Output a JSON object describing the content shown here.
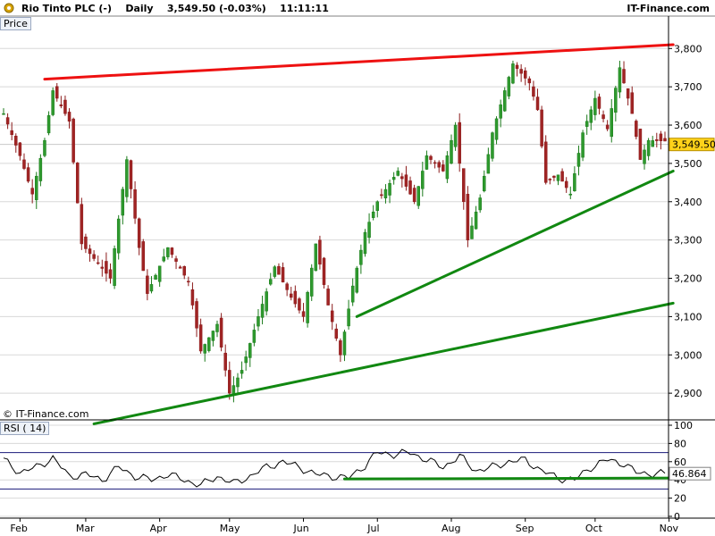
{
  "header": {
    "title": "Rio Tinto PLC (-)",
    "period": "Daily",
    "last": "3,549.50 (-0.03%)",
    "time": "11:11:11",
    "brand": "IT-Finance.com"
  },
  "panels": {
    "price_label": "Price",
    "rsi_label": "RSI ( 14)"
  },
  "copyright": "© IT-Finance.com",
  "colors": {
    "up": "#1a7a1a",
    "down": "#8b1a1a",
    "trend_red": "#ee1111",
    "trend_green": "#118811",
    "price_tag": "#ffd21a",
    "rsi_line": "#000000"
  },
  "chart_data": [
    {
      "type": "candlestick",
      "title": "Rio Tinto PLC (-) Daily",
      "ylabel": "Price",
      "ylim": [
        2835,
        3845
      ],
      "yticks": [
        2900,
        3000,
        3100,
        3200,
        3300,
        3400,
        3500,
        3600,
        3700,
        3800
      ],
      "ytick_labels": [
        "2,900",
        "3,000",
        "3,100",
        "3,200",
        "3,300",
        "3,400",
        "3,500",
        "3,600",
        "3,700",
        "3,800"
      ],
      "months": [
        "Feb",
        "Mar",
        "Apr",
        "May",
        "Jun",
        "Jul",
        "Aug",
        "Sep",
        "Oct",
        "Nov"
      ],
      "month_index": [
        4,
        20,
        38,
        55,
        73,
        91,
        109,
        127,
        144,
        162
      ],
      "n_bars": 162,
      "anchors": [
        [
          0,
          3630
        ],
        [
          4,
          3520
        ],
        [
          7,
          3420
        ],
        [
          10,
          3560
        ],
        [
          12,
          3690
        ],
        [
          16,
          3610
        ],
        [
          19,
          3290
        ],
        [
          26,
          3200
        ],
        [
          30,
          3510
        ],
        [
          33,
          3280
        ],
        [
          35,
          3160
        ],
        [
          40,
          3280
        ],
        [
          45,
          3190
        ],
        [
          48,
          3010
        ],
        [
          52,
          3080
        ],
        [
          55,
          2900
        ],
        [
          58,
          2960
        ],
        [
          62,
          3100
        ],
        [
          66,
          3230
        ],
        [
          70,
          3150
        ],
        [
          73,
          3100
        ],
        [
          76,
          3290
        ],
        [
          79,
          3130
        ],
        [
          82,
          3000
        ],
        [
          85,
          3180
        ],
        [
          88,
          3320
        ],
        [
          91,
          3400
        ],
        [
          96,
          3480
        ],
        [
          100,
          3400
        ],
        [
          103,
          3520
        ],
        [
          107,
          3480
        ],
        [
          110,
          3600
        ],
        [
          113,
          3300
        ],
        [
          116,
          3410
        ],
        [
          119,
          3580
        ],
        [
          122,
          3690
        ],
        [
          124,
          3760
        ],
        [
          128,
          3710
        ],
        [
          130,
          3640
        ],
        [
          132,
          3450
        ],
        [
          135,
          3470
        ],
        [
          138,
          3420
        ],
        [
          141,
          3580
        ],
        [
          144,
          3670
        ],
        [
          147,
          3590
        ],
        [
          150,
          3750
        ],
        [
          153,
          3630
        ],
        [
          155,
          3510
        ],
        [
          157,
          3560
        ]
      ],
      "last_price": 3549.5,
      "last_price_label": "3,549.50",
      "trendlines": [
        {
          "color": "red",
          "from": [
            10,
            3720
          ],
          "to": [
            163,
            3810
          ]
        },
        {
          "color": "green",
          "from": [
            22,
            2820
          ],
          "to": [
            163,
            3135
          ]
        },
        {
          "color": "green",
          "from": [
            86,
            3100
          ],
          "to": [
            163,
            3480
          ]
        }
      ]
    },
    {
      "type": "line",
      "title": "RSI ( 14)",
      "ylim": [
        0,
        100
      ],
      "yticks": [
        0,
        20,
        40,
        60,
        80,
        100
      ],
      "ytick_labels": [
        "0",
        "20",
        "40",
        "60",
        "80",
        "100"
      ],
      "reference_lines": [
        30,
        70
      ],
      "last_value": 46.864,
      "last_value_label": "46.864",
      "anchors": [
        [
          0,
          62
        ],
        [
          4,
          48
        ],
        [
          8,
          54
        ],
        [
          12,
          64
        ],
        [
          16,
          44
        ],
        [
          20,
          46
        ],
        [
          24,
          40
        ],
        [
          28,
          54
        ],
        [
          32,
          44
        ],
        [
          36,
          40
        ],
        [
          40,
          46
        ],
        [
          44,
          40
        ],
        [
          48,
          34
        ],
        [
          52,
          44
        ],
        [
          56,
          36
        ],
        [
          60,
          44
        ],
        [
          64,
          54
        ],
        [
          68,
          60
        ],
        [
          72,
          54
        ],
        [
          76,
          46
        ],
        [
          80,
          44
        ],
        [
          84,
          42
        ],
        [
          88,
          56
        ],
        [
          91,
          70
        ],
        [
          95,
          68
        ],
        [
          99,
          70
        ],
        [
          103,
          62
        ],
        [
          107,
          54
        ],
        [
          111,
          66
        ],
        [
          115,
          50
        ],
        [
          119,
          54
        ],
        [
          123,
          60
        ],
        [
          127,
          62
        ],
        [
          131,
          50
        ],
        [
          135,
          42
        ],
        [
          139,
          40
        ],
        [
          143,
          54
        ],
        [
          147,
          62
        ],
        [
          151,
          58
        ],
        [
          154,
          48
        ],
        [
          157,
          47
        ]
      ],
      "trendlines": [
        {
          "color": "green",
          "from": [
            83,
            41
          ],
          "to": [
            163,
            42
          ]
        }
      ]
    }
  ]
}
